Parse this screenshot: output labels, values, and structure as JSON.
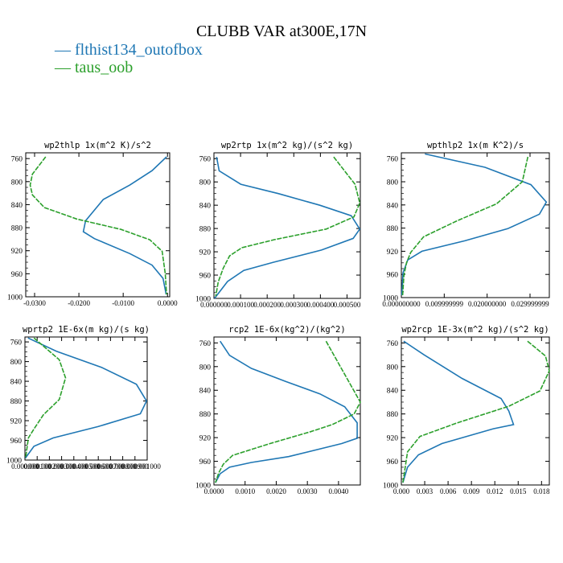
{
  "title": "CLUBB VAR at300E,17N",
  "legend": [
    {
      "label": "flthist134_outofbox",
      "color": "#1f77b4"
    },
    {
      "label": "taus_oob",
      "color": "#2ca02c"
    }
  ],
  "chart_data": [
    {
      "type": "line",
      "title": "wp2thlp  1x(m^2 K)/s^2",
      "xlim": [
        -0.032,
        0.0005
      ],
      "ylim": [
        1000,
        750
      ],
      "xticks": [
        -0.03,
        -0.02,
        -0.01,
        0.0
      ],
      "xticklabels": [
        "-0.0300",
        "-0.0200",
        "-0.0100",
        "0.0000"
      ],
      "yticks": [
        760,
        800,
        840,
        880,
        920,
        960,
        1000
      ],
      "series": [
        {
          "name": "flthist134_outofbox",
          "color": "#1f77b4",
          "x": [
            -0.0002,
            -0.0035,
            -0.0085,
            -0.0145,
            -0.0185,
            -0.019,
            -0.0165,
            -0.0085,
            -0.0035,
            -0.001,
            -0.0003
          ],
          "y": [
            757,
            781,
            806,
            831,
            868,
            887,
            899,
            925,
            945,
            968,
            996
          ]
        },
        {
          "name": "taus_oob",
          "color": "#2ca02c",
          "x": [
            -0.0275,
            -0.0305,
            -0.031,
            -0.0305,
            -0.0278,
            -0.0205,
            -0.0105,
            -0.004,
            -0.0012,
            -0.0005,
            -0.0002
          ],
          "y": [
            757,
            787,
            806,
            823,
            845,
            865,
            883,
            901,
            921,
            960,
            996
          ]
        }
      ]
    },
    {
      "type": "line",
      "title": "wp2rtp  1x(m^2 kg)/(s^2 kg)",
      "xlim": [
        0.0,
        0.00055
      ],
      "ylim": [
        1000,
        750
      ],
      "xticks": [
        0.0,
        0.0001,
        0.0002,
        0.0003,
        0.0004,
        0.0005
      ],
      "xticklabels": [
        "0.000000",
        "0.000100",
        "0.000200",
        "0.000300",
        "0.000400",
        "0.000500"
      ],
      "yticks": [
        760,
        800,
        840,
        880,
        920,
        960,
        1000
      ],
      "series": [
        {
          "name": "flthist134_outofbox",
          "color": "#1f77b4",
          "x": [
            1e-05,
            1.95e-05,
            0.000101,
            0.000242,
            0.000398,
            0.000516,
            0.000548,
            0.000523,
            0.000404,
            0.000223,
            0.000112,
            5.1e-05,
            2e-06
          ],
          "y": [
            757,
            781,
            804,
            820,
            840,
            858,
            881,
            897,
            917,
            938,
            952,
            971,
            1000
          ]
        },
        {
          "name": "taus_oob",
          "color": "#2ca02c",
          "x": [
            0.00045,
            0.00053,
            0.000548,
            0.000526,
            0.000422,
            0.000228,
            0.000105,
            5.9e-05,
            3.5e-05,
            1.6e-05,
            7e-06
          ],
          "y": [
            757,
            804,
            836,
            860,
            881,
            899,
            913,
            927,
            948,
            972,
            996
          ]
        }
      ]
    },
    {
      "type": "line",
      "title": "wpthlp2  1x(m K^2)/s",
      "xlim": [
        0.0,
        0.0345
      ],
      "ylim": [
        1000,
        750
      ],
      "xticks": [
        0.0,
        0.01,
        0.02,
        0.03
      ],
      "xticklabels": [
        "0.000000000",
        "0.009999999",
        "0.020000000",
        "0.029999999"
      ],
      "yticks": [
        760,
        800,
        840,
        880,
        920,
        960,
        1000
      ],
      "series": [
        {
          "name": "flthist134_outofbox",
          "color": "#1f77b4",
          "x": [
            0.0055,
            0.0195,
            0.0302,
            0.0338,
            0.0322,
            0.0248,
            0.0148,
            0.0048,
            0.0015,
            0.0004,
            0.0001
          ],
          "y": [
            752,
            775,
            805,
            835,
            856,
            881,
            902,
            920,
            935,
            957,
            996
          ]
        },
        {
          "name": "taus_oob",
          "color": "#2ca02c",
          "x": [
            0.0295,
            0.0282,
            0.0222,
            0.0128,
            0.0052,
            0.0022,
            0.0012,
            0.0006,
            0.0003
          ],
          "y": [
            757,
            800,
            838,
            868,
            895,
            922,
            940,
            962,
            996
          ]
        }
      ]
    },
    {
      "type": "line",
      "title": "wprtp2  1E-6x(m kg)/(s kg)",
      "xlim": [
        0.0,
        0.001
      ],
      "ylim": [
        1000,
        750
      ],
      "xticks": [
        0.0,
        0.0001,
        0.0002,
        0.0003,
        0.0004,
        0.0005,
        0.0006,
        0.0007,
        0.0008,
        0.0009,
        0.001
      ],
      "xticklabels": [
        "0.000000",
        "0.000100",
        "0.000200",
        "0.000300",
        "0.000400",
        "0.000500",
        "0.000600",
        "0.000700",
        "0.000800",
        "0.000900",
        "0.001000"
      ],
      "yticks": [
        760,
        800,
        840,
        880,
        920,
        960,
        1000
      ],
      "series": [
        {
          "name": "flthist134_outofbox",
          "color": "#1f77b4",
          "x": [
            2.5e-05,
            0.000258,
            0.000628,
            0.000912,
            0.000995,
            0.000944,
            0.000598,
            0.000231,
            7.4e-05,
            3e-06
          ],
          "y": [
            752,
            779,
            812,
            846,
            880,
            906,
            932,
            955,
            972,
            996
          ]
        },
        {
          "name": "taus_oob",
          "color": "#2ca02c",
          "x": [
            7.4e-05,
            0.00028,
            0.000332,
            0.000281,
            0.000151,
            7.4e-05,
            2.8e-05,
            5e-06
          ],
          "y": [
            752,
            796,
            833,
            877,
            908,
            937,
            955,
            996
          ]
        }
      ]
    },
    {
      "type": "line",
      "title": "rcp2  1E-6x(kg^2)/(kg^2)",
      "xlim": [
        0.0,
        0.0047
      ],
      "ylim": [
        1000,
        750
      ],
      "xticks": [
        0.0,
        0.001,
        0.002,
        0.003,
        0.004
      ],
      "xticklabels": [
        "0.0000",
        "0.0010",
        "0.0020",
        "0.0030",
        "0.0040"
      ],
      "yticks": [
        760,
        800,
        840,
        880,
        920,
        960,
        1000
      ],
      "series": [
        {
          "name": "flthist134_outofbox",
          "color": "#1f77b4",
          "x": [
            0.0002,
            0.0005,
            0.0012,
            0.0023,
            0.0034,
            0.0042,
            0.0046,
            0.0046,
            0.0041,
            0.0024,
            0.0012,
            0.0005,
            0.0002,
            5e-05
          ],
          "y": [
            757,
            781,
            803,
            825,
            846,
            868,
            895,
            921,
            930,
            952,
            962,
            970,
            981,
            996
          ]
        },
        {
          "name": "taus_oob",
          "color": "#2ca02c",
          "x": [
            0.0036,
            0.0047,
            0.0045,
            0.0038,
            0.0031,
            0.0018,
            0.0006,
            0.0003,
            0.00015,
            5e-05
          ],
          "y": [
            757,
            860,
            880,
            898,
            910,
            930,
            950,
            965,
            980,
            996
          ]
        }
      ]
    },
    {
      "type": "line",
      "title": "wp2rcp  1E-3x(m^2 kg)/(s^2 kg)",
      "xlim": [
        0.0,
        0.019
      ],
      "ylim": [
        1000,
        750
      ],
      "xticks": [
        0.0,
        0.003,
        0.006,
        0.009,
        0.012,
        0.015,
        0.018
      ],
      "xticklabels": [
        "0.000",
        "0.003",
        "0.006",
        "0.009",
        "0.012",
        "0.015",
        "0.018"
      ],
      "yticks": [
        760,
        800,
        840,
        880,
        920,
        960,
        1000
      ],
      "series": [
        {
          "name": "flthist134_outofbox",
          "color": "#1f77b4",
          "x": [
            0.0003,
            0.0029,
            0.0078,
            0.0128,
            0.0138,
            0.0144,
            0.0118,
            0.0052,
            0.0022,
            0.0008,
            0.0002
          ],
          "y": [
            757,
            780,
            820,
            854,
            875,
            898,
            905,
            930,
            949,
            970,
            996
          ]
        },
        {
          "name": "taus_oob",
          "color": "#2ca02c",
          "x": [
            0.0162,
            0.0185,
            0.019,
            0.0178,
            0.0138,
            0.0072,
            0.0024,
            0.0008,
            0.0002
          ],
          "y": [
            757,
            782,
            807,
            841,
            867,
            895,
            918,
            944,
            996
          ]
        }
      ]
    }
  ]
}
